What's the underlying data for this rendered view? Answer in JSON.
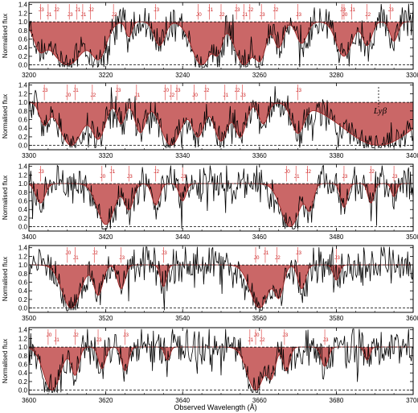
{
  "chart_data": {
    "type": "line",
    "ylabel": "Normalised flux",
    "xlabel": "Observed Wavelength (Å)",
    "ylim": [
      -0.1,
      1.45
    ],
    "ytick_labels": [
      "0.0",
      "0.2",
      "0.4",
      "0.6",
      "0.8",
      "1.0",
      "1.2",
      "1.4"
    ],
    "ytick_values": [
      0.0,
      0.2,
      0.4,
      0.6,
      0.8,
      1.0,
      1.2,
      1.4
    ],
    "colors": {
      "model_fill": "#c65a5a",
      "model_line": "#9e2a2a",
      "spectrum": "#000000",
      "component_marker": "#dd3333",
      "residual": "#33aaff"
    },
    "panels": [
      {
        "xlim": [
          3200,
          3300
        ],
        "xtick_labels": [
          "3200",
          "3220",
          "3240",
          "3260",
          "3280",
          "3300"
        ],
        "xtick_values": [
          3200,
          3220,
          3240,
          3260,
          3280,
          3300
        ],
        "components": [
          {
            "label": "J3",
            "x": 3203
          },
          {
            "label": "J1",
            "x": 3205
          },
          {
            "label": "J2",
            "x": 3207
          },
          {
            "label": "J3",
            "x": 3210.5
          },
          {
            "label": "J1",
            "x": 3212.5
          },
          {
            "label": "J1",
            "x": 3214
          },
          {
            "label": "J2",
            "x": 3216
          },
          {
            "label": "J2",
            "x": 3222
          },
          {
            "label": "J3",
            "x": 3233
          },
          {
            "label": "J0",
            "x": 3244
          },
          {
            "label": "J1",
            "x": 3247
          },
          {
            "label": "J2",
            "x": 3250
          },
          {
            "label": "J3",
            "x": 3254
          },
          {
            "label": "J1",
            "x": 3256
          },
          {
            "label": "J2",
            "x": 3257.5
          },
          {
            "label": "J3",
            "x": 3260.5
          },
          {
            "label": "J2",
            "x": 3264
          },
          {
            "label": "J3",
            "x": 3270
          },
          {
            "label": "J3",
            "x": 3281.5
          },
          {
            "label": "J0",
            "x": 3282
          },
          {
            "label": "J1",
            "x": 3284
          },
          {
            "label": "J2",
            "x": 3288
          },
          {
            "label": "J3",
            "x": 3294
          }
        ],
        "model_lines": [
          {
            "x": 3203,
            "depth": 0.6,
            "width": 1.5
          },
          {
            "x": 3210,
            "depth": 1.0,
            "width": 4.5
          },
          {
            "x": 3218,
            "depth": 0.85,
            "width": 2.0
          },
          {
            "x": 3226,
            "depth": 0.35,
            "width": 0.8
          },
          {
            "x": 3234,
            "depth": 0.55,
            "width": 1.4
          },
          {
            "x": 3245,
            "depth": 1.0,
            "width": 2.6
          },
          {
            "x": 3249,
            "depth": 0.7,
            "width": 1.2
          },
          {
            "x": 3256,
            "depth": 1.0,
            "width": 2.4
          },
          {
            "x": 3260,
            "depth": 0.9,
            "width": 1.6
          },
          {
            "x": 3265,
            "depth": 0.6,
            "width": 1.2
          },
          {
            "x": 3271,
            "depth": 0.5,
            "width": 1.4
          },
          {
            "x": 3282,
            "depth": 0.8,
            "width": 2.0
          },
          {
            "x": 3288,
            "depth": 0.55,
            "width": 1.2
          },
          {
            "x": 3295,
            "depth": 0.45,
            "width": 1.0
          }
        ]
      },
      {
        "xlim": [
          3300,
          3400
        ],
        "xtick_labels": [
          "3300",
          "3320",
          "3340",
          "3360",
          "3380",
          "3400"
        ],
        "xtick_values": [
          3300,
          3320,
          3340,
          3360,
          3380,
          3400
        ],
        "annotation": {
          "label": "Lyβ",
          "x": 3391
        },
        "components": [
          {
            "label": "J3",
            "x": 3304
          },
          {
            "label": "J0",
            "x": 3310
          },
          {
            "label": "J1",
            "x": 3312
          },
          {
            "label": "J2",
            "x": 3316.5
          },
          {
            "label": "J3",
            "x": 3323
          },
          {
            "label": "J1",
            "x": 3328
          },
          {
            "label": "J0",
            "x": 3335.5
          },
          {
            "label": "J2",
            "x": 3337
          },
          {
            "label": "J3",
            "x": 3338.5
          },
          {
            "label": "J0",
            "x": 3343
          },
          {
            "label": "J2",
            "x": 3346
          },
          {
            "label": "J1",
            "x": 3351
          },
          {
            "label": "J2",
            "x": 3354
          },
          {
            "label": "J3",
            "x": 3355.5
          },
          {
            "label": "J3",
            "x": 3370
          }
        ],
        "model_lines": [
          {
            "x": 3304,
            "depth": 0.5,
            "width": 1.2
          },
          {
            "x": 3311,
            "depth": 1.0,
            "width": 3.0
          },
          {
            "x": 3318,
            "depth": 0.85,
            "width": 1.8
          },
          {
            "x": 3324,
            "depth": 0.5,
            "width": 1.0
          },
          {
            "x": 3329,
            "depth": 0.7,
            "width": 1.4
          },
          {
            "x": 3337,
            "depth": 1.0,
            "width": 2.6
          },
          {
            "x": 3344,
            "depth": 0.8,
            "width": 1.6
          },
          {
            "x": 3350,
            "depth": 0.9,
            "width": 1.8
          },
          {
            "x": 3355,
            "depth": 0.8,
            "width": 1.5
          },
          {
            "x": 3361,
            "depth": 0.5,
            "width": 1.2
          },
          {
            "x": 3370,
            "depth": 0.7,
            "width": 1.6
          },
          {
            "x": 3391,
            "depth": 1.0,
            "width": 9.0
          }
        ]
      },
      {
        "xlim": [
          3400,
          3500
        ],
        "xtick_labels": [
          "3400",
          "3420",
          "3440",
          "3460",
          "3480",
          "3500"
        ],
        "xtick_values": [
          3400,
          3420,
          3440,
          3460,
          3480,
          3500
        ],
        "components": [
          {
            "label": "J3",
            "x": 3403
          },
          {
            "label": "J0",
            "x": 3419
          },
          {
            "label": "J1",
            "x": 3421.5
          },
          {
            "label": "J3",
            "x": 3426
          },
          {
            "label": "J2",
            "x": 3433
          },
          {
            "label": "J3",
            "x": 3440
          },
          {
            "label": "J0",
            "x": 3467
          },
          {
            "label": "J1",
            "x": 3469.5
          },
          {
            "label": "J2",
            "x": 3472.5
          },
          {
            "label": "J3",
            "x": 3482
          },
          {
            "label": "J2",
            "x": 3489
          },
          {
            "label": "J3",
            "x": 3495
          }
        ],
        "model_lines": [
          {
            "x": 3403,
            "depth": 0.45,
            "width": 1.2
          },
          {
            "x": 3420,
            "depth": 0.95,
            "width": 2.2
          },
          {
            "x": 3426,
            "depth": 0.6,
            "width": 1.2
          },
          {
            "x": 3433,
            "depth": 0.5,
            "width": 1.0
          },
          {
            "x": 3440,
            "depth": 0.4,
            "width": 0.9
          },
          {
            "x": 3468,
            "depth": 1.0,
            "width": 2.4
          },
          {
            "x": 3473,
            "depth": 0.6,
            "width": 1.0
          },
          {
            "x": 3482,
            "depth": 0.55,
            "width": 0.9
          },
          {
            "x": 3489,
            "depth": 0.45,
            "width": 0.8
          },
          {
            "x": 3495,
            "depth": 0.3,
            "width": 0.7
          }
        ]
      },
      {
        "xlim": [
          3500,
          3600
        ],
        "xtick_labels": [
          "3500",
          "3520",
          "3540",
          "3560",
          "3580",
          "3600"
        ],
        "xtick_values": [
          3500,
          3520,
          3540,
          3560,
          3580,
          3600
        ],
        "components": [
          {
            "label": "J0",
            "x": 3510
          },
          {
            "label": "J1",
            "x": 3512
          },
          {
            "label": "J2",
            "x": 3517
          },
          {
            "label": "J3",
            "x": 3524
          },
          {
            "label": "J3",
            "x": 3535
          },
          {
            "label": "J0",
            "x": 3559
          },
          {
            "label": "J1",
            "x": 3561.5
          },
          {
            "label": "J2",
            "x": 3564.5
          },
          {
            "label": "J3",
            "x": 3570
          },
          {
            "label": "J3",
            "x": 3580
          }
        ],
        "model_lines": [
          {
            "x": 3511,
            "depth": 1.0,
            "width": 2.4
          },
          {
            "x": 3518,
            "depth": 0.7,
            "width": 1.2
          },
          {
            "x": 3524,
            "depth": 0.55,
            "width": 1.0
          },
          {
            "x": 3535,
            "depth": 0.5,
            "width": 0.8
          },
          {
            "x": 3560,
            "depth": 1.0,
            "width": 2.4
          },
          {
            "x": 3565,
            "depth": 0.75,
            "width": 1.2
          },
          {
            "x": 3571,
            "depth": 0.55,
            "width": 1.0
          },
          {
            "x": 3580,
            "depth": 0.35,
            "width": 0.8
          }
        ]
      },
      {
        "xlim": [
          3600,
          3700
        ],
        "xtick_labels": [
          "3600",
          "3620",
          "3640",
          "3660",
          "3680",
          "3700"
        ],
        "xtick_values": [
          3600,
          3620,
          3640,
          3660,
          3680,
          3700
        ],
        "components": [
          {
            "label": "J0",
            "x": 3605
          },
          {
            "label": "J1",
            "x": 3607
          },
          {
            "label": "J2",
            "x": 3612
          },
          {
            "label": "J3",
            "x": 3618
          },
          {
            "label": "J3",
            "x": 3625
          },
          {
            "label": "J1",
            "x": 3657.5
          },
          {
            "label": "J0",
            "x": 3659
          },
          {
            "label": "J2",
            "x": 3660.5
          },
          {
            "label": "J3",
            "x": 3666.5
          },
          {
            "label": "J3",
            "x": 3677
          }
        ],
        "model_lines": [
          {
            "x": 3606,
            "depth": 1.0,
            "width": 2.2
          },
          {
            "x": 3612,
            "depth": 0.65,
            "width": 1.0
          },
          {
            "x": 3619,
            "depth": 0.5,
            "width": 0.9
          },
          {
            "x": 3625,
            "depth": 0.55,
            "width": 0.9
          },
          {
            "x": 3636,
            "depth": 0.3,
            "width": 0.7
          },
          {
            "x": 3659,
            "depth": 1.0,
            "width": 2.2
          },
          {
            "x": 3663,
            "depth": 0.7,
            "width": 1.1
          },
          {
            "x": 3667,
            "depth": 0.55,
            "width": 0.9
          },
          {
            "x": 3677,
            "depth": 0.45,
            "width": 0.9
          },
          {
            "x": 3688,
            "depth": 0.3,
            "width": 0.7
          }
        ]
      }
    ]
  }
}
